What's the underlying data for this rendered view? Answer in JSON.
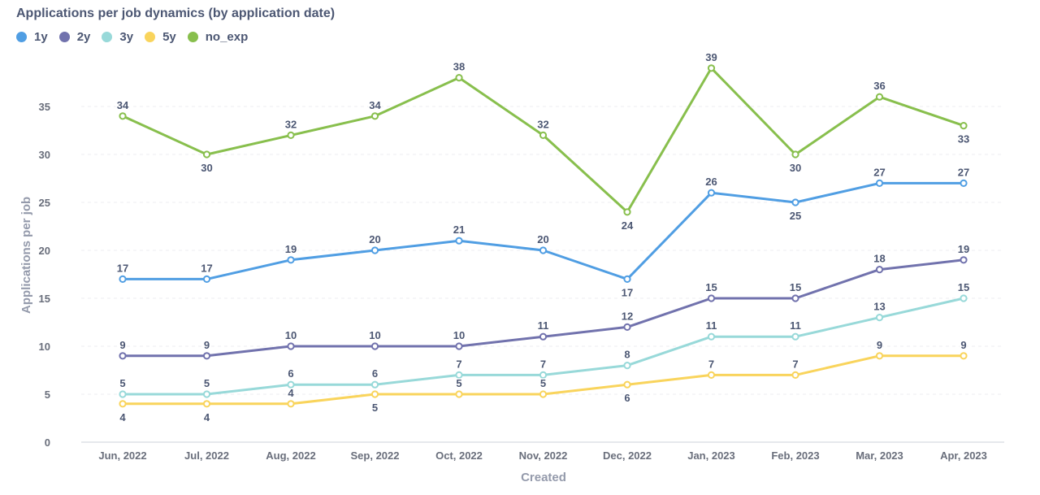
{
  "chart_data": {
    "type": "line",
    "title": "Applications per job dynamics (by application date)",
    "xlabel": "Created",
    "ylabel": "Applications per job",
    "ylim": [
      0,
      40
    ],
    "yticks": [
      0,
      5,
      10,
      15,
      20,
      25,
      30,
      35
    ],
    "grid": true,
    "legend_position": "top-left",
    "categories": [
      "Jun, 2022",
      "Jul, 2022",
      "Aug, 2022",
      "Sep, 2022",
      "Oct, 2022",
      "Nov, 2022",
      "Dec, 2022",
      "Jan, 2023",
      "Feb, 2023",
      "Mar, 2023",
      "Apr, 2023"
    ],
    "series": [
      {
        "name": "1y",
        "color": "#509ee3",
        "values": [
          17,
          17,
          19,
          20,
          21,
          20,
          17,
          26,
          25,
          27,
          27
        ]
      },
      {
        "name": "2y",
        "color": "#7172ad",
        "values": [
          9,
          9,
          10,
          10,
          10,
          11,
          12,
          15,
          15,
          18,
          19
        ]
      },
      {
        "name": "3y",
        "color": "#98d9d9",
        "values": [
          5,
          5,
          6,
          6,
          7,
          7,
          8,
          11,
          11,
          13,
          15
        ]
      },
      {
        "name": "5y",
        "color": "#f9d45c",
        "values": [
          4,
          4,
          4,
          5,
          5,
          5,
          6,
          7,
          7,
          9,
          9
        ]
      },
      {
        "name": "no_exp",
        "color": "#88bf4d",
        "values": [
          34,
          30,
          32,
          34,
          38,
          32,
          24,
          39,
          30,
          36,
          33
        ]
      }
    ]
  }
}
